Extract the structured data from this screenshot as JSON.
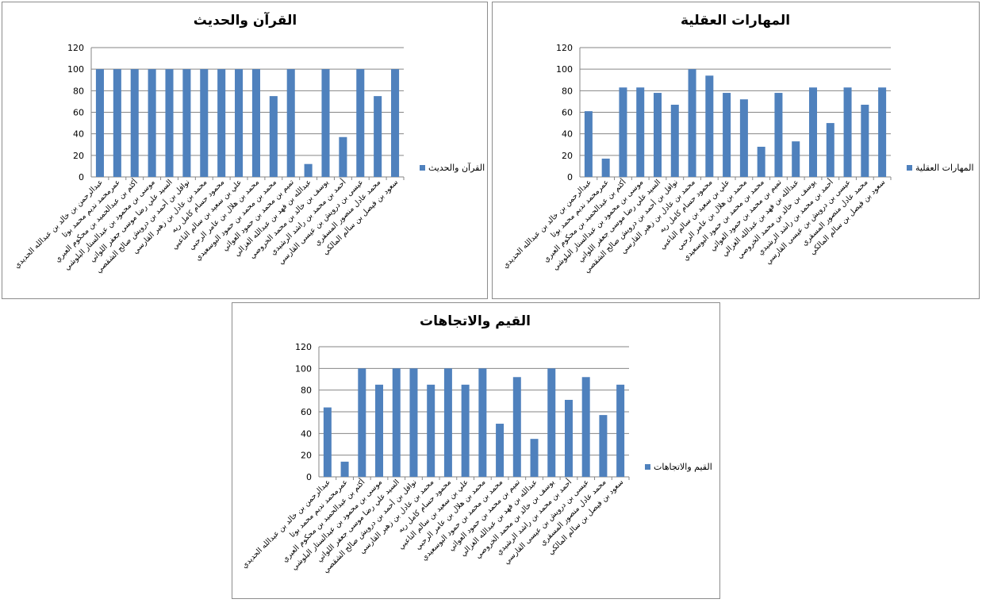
{
  "chart_data": [
    {
      "type": "bar",
      "title": "القرآن والحديث",
      "xlabel": "",
      "ylabel": "",
      "ylim": [
        0,
        120
      ],
      "yticks": [
        0,
        20,
        40,
        60,
        80,
        100,
        120
      ],
      "grid": true,
      "legend": "right",
      "bar_color": "#4f81bd",
      "categories": [
        "عبدالرحمن بن خالد بن عبدالله الحديدي",
        "عمرمحمد نديم محمد بوتا",
        "أكثم بن عبدالحميد بن محكوم العبري",
        "موسى بن محمود بن عبدالستار البلوشي",
        "السيد علي رضا موسى جعفر  اللواتي",
        "نوافل بن أحمد بن درويش صالح الشقصي",
        "محمد بن عادل بن زهير القارسي",
        "محمود حسام كامل ريه",
        "علي بن سعيد بن سالم الناعبي",
        "محمد بن هلال بن عامر الرحبي",
        "محمد بن محمد بن حمود البوسعيدي",
        "تميم بن محمد بن حمود العوائي",
        "عبدالله بن فهد بن عبدالله الغزالي",
        "يوسف بن خالد بن محمد الخروصي",
        "أحمد بن محمد بن راشد الرشيدي",
        "عيسى بن درويش بن عيسى القارسي",
        "محمد عادل منصور  المسقري",
        "سعود بن فيصل بن سالم  المالكي"
      ],
      "series": [
        {
          "name": "القرآن والحديث",
          "values": [
            100,
            100,
            100,
            100,
            100,
            100,
            100,
            100,
            100,
            100,
            75,
            100,
            12,
            100,
            37,
            100,
            75,
            100
          ]
        }
      ]
    },
    {
      "type": "bar",
      "title": "المهارات العقلية",
      "xlabel": "",
      "ylabel": "",
      "ylim": [
        0,
        120
      ],
      "yticks": [
        0,
        20,
        40,
        60,
        80,
        100,
        120
      ],
      "grid": true,
      "legend": "right",
      "bar_color": "#4f81bd",
      "categories": [
        "عبدالرحمن بن خالد بن عبدالله الحديدي",
        "عمرمحمد نديم محمد بوتا",
        "أكثم بن عبدالحميد بن محكوم العبري",
        "موسى بن محمود بن عبدالستار البلوشي",
        "السيد علي رضا موسى جعفر  اللواتي",
        "نوافل بن أحمد بن درويش صالح الشقصي",
        "محمد بن عادل بن زهير القارسي",
        "محمود حسام كامل ريه",
        "علي بن سعيد بن سالم الناعبي",
        "محمد بن هلال بن عامر الرحبي",
        "محمد بن محمد بن حمود البوسعيدي",
        "تميم بن محمد بن حمود العوائي",
        "عبدالله بن فهد بن عبدالله الغزالي",
        "يوسف بن خالد بن محمد الخروصي",
        "أحمد بن محمد بن راشد الرشيدي",
        "عيسى بن درويش بن عيسى القارسي",
        "محمد عادل منصور  المسقري",
        "سعود بن فيصل بن سالم  المالكي"
      ],
      "series": [
        {
          "name": "المهارات العقلية",
          "values": [
            61,
            17,
            83,
            83,
            78,
            67,
            100,
            94,
            78,
            72,
            28,
            78,
            33,
            83,
            50,
            83,
            67,
            83
          ]
        }
      ]
    },
    {
      "type": "bar",
      "title": "القيم والاتجاهات",
      "xlabel": "",
      "ylabel": "",
      "ylim": [
        0,
        120
      ],
      "yticks": [
        0,
        20,
        40,
        60,
        80,
        100,
        120
      ],
      "grid": true,
      "legend": "right",
      "bar_color": "#4f81bd",
      "categories": [
        "عبدالرحمن بن خالد بن عبدالله الحديدي",
        "عمرمحمد نديم محمد بوتا",
        "أكثم بن عبدالحميد بن محكوم العبري",
        "موسى بن محمود بن عبدالستار البلوشي",
        "السيد علي رضا موسى جعفر  اللواتي",
        "نوافل بن أحمد بن درويش صالح الشقصي",
        "محمد بن عادل بن زهير القارسي",
        "محمود حسام كامل ريه",
        "علي بن سعيد بن سالم الناعبي",
        "محمد بن هلال بن عامر الرحبي",
        "محمد بن محمد بن حمود البوسعيدي",
        "تميم بن محمد بن حمود العوائي",
        "عبدالله بن فهد بن عبدالله الغزالي",
        "يوسف بن خالد بن محمد الخروصي",
        "أحمد بن محمد بن راشد الرشيدي",
        "عيسى بن درويش بن عيسى القارسي",
        "محمد عادل منصور  المسقري",
        "سعود بن فيصل بن سالم  المالكي"
      ],
      "series": [
        {
          "name": "القيم والاتجاهات",
          "values": [
            64,
            14,
            100,
            85,
            100,
            100,
            85,
            100,
            85,
            100,
            49,
            92,
            35,
            100,
            71,
            92,
            57,
            85
          ]
        }
      ]
    }
  ]
}
